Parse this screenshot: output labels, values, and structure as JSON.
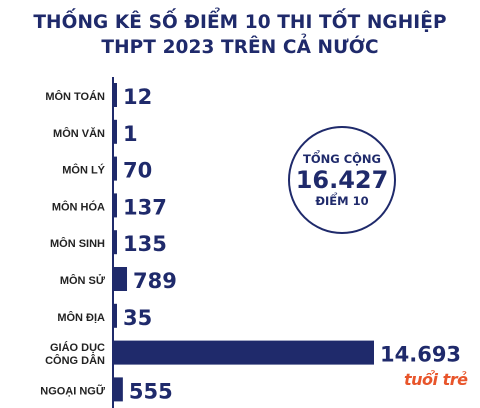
{
  "title_line1": "THỐNG KÊ SỐ ĐIỂM 10 THI TỐT NGHIỆP",
  "title_line2": "THPT 2023 TRÊN CẢ NƯỚC",
  "total": {
    "label": "TỔNG CỘNG",
    "value": "16.427",
    "unit": "ĐIỂM 10"
  },
  "logo": "tuổi trẻ",
  "colors": {
    "bar": "#1f2a6b",
    "axis": "#1f2a6b"
  },
  "chart_data": {
    "type": "bar",
    "orientation": "horizontal",
    "categories": [
      [
        "MÔN TOÁN"
      ],
      [
        "MÔN VĂN"
      ],
      [
        "MÔN LÝ"
      ],
      [
        "MÔN HÓA"
      ],
      [
        "MÔN SINH"
      ],
      [
        "MÔN SỬ"
      ],
      [
        "MÔN ĐỊA"
      ],
      [
        "GIÁO DỤC",
        "CÔNG DÂN"
      ],
      [
        "NGOẠI NGỮ"
      ]
    ],
    "values": [
      12,
      1,
      70,
      137,
      135,
      789,
      35,
      14693,
      555
    ],
    "value_labels": [
      "12",
      "1",
      "70",
      "137",
      "135",
      "789",
      "35",
      "14.693",
      "555"
    ],
    "xlim": [
      0,
      14693
    ]
  }
}
